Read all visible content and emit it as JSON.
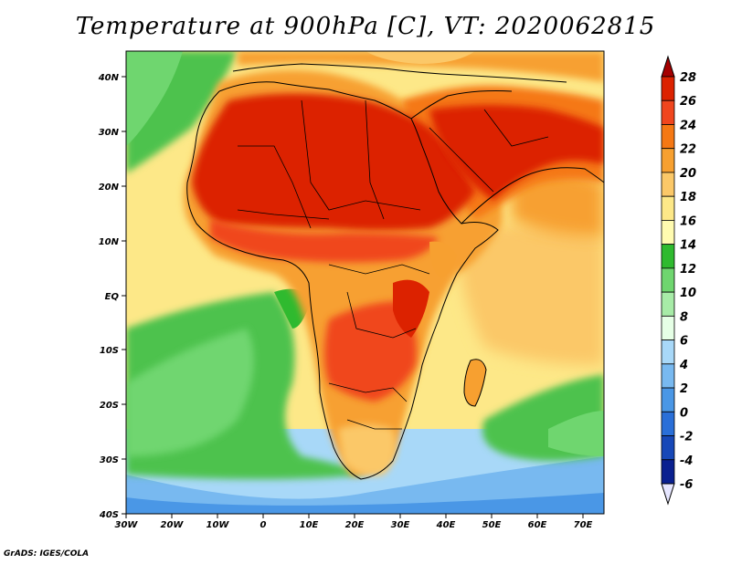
{
  "title": "Temperature at 900hPa [C], VT: 2020062815",
  "credit": "GrADS: IGES/COLA",
  "map": {
    "lon_labels": [
      "30W",
      "20W",
      "10W",
      "0",
      "10E",
      "20E",
      "30E",
      "40E",
      "50E",
      "60E",
      "70E"
    ],
    "lat_labels": [
      "40N",
      "30N",
      "20N",
      "10N",
      "EQ",
      "10S",
      "20S",
      "30S",
      "40S"
    ],
    "lon_range": [
      -30,
      75
    ],
    "lat_range": [
      -40,
      45
    ]
  },
  "colorbar": {
    "levels": [
      "28",
      "26",
      "24",
      "22",
      "20",
      "18",
      "16",
      "14",
      "12",
      "10",
      "8",
      "6",
      "4",
      "2",
      "0",
      "-2",
      "-4",
      "-6"
    ],
    "colors": [
      "#a50000",
      "#dc2200",
      "#f0461e",
      "#f57814",
      "#f7a030",
      "#fbc868",
      "#fde888",
      "#fffbb0",
      "#2fba2f",
      "#6fd66f",
      "#a7eba7",
      "#e6ffe6",
      "#a8d8f8",
      "#78b9f0",
      "#4a97e6",
      "#2a6fd8",
      "#1748b8",
      "#0a2090",
      "#02105e"
    ]
  },
  "colors": {
    "ocean_low": "#8fc8f0",
    "ocean_green": "#4ec24e",
    "sea_warm": "#fbc868",
    "land_hot": "#dc2200"
  }
}
